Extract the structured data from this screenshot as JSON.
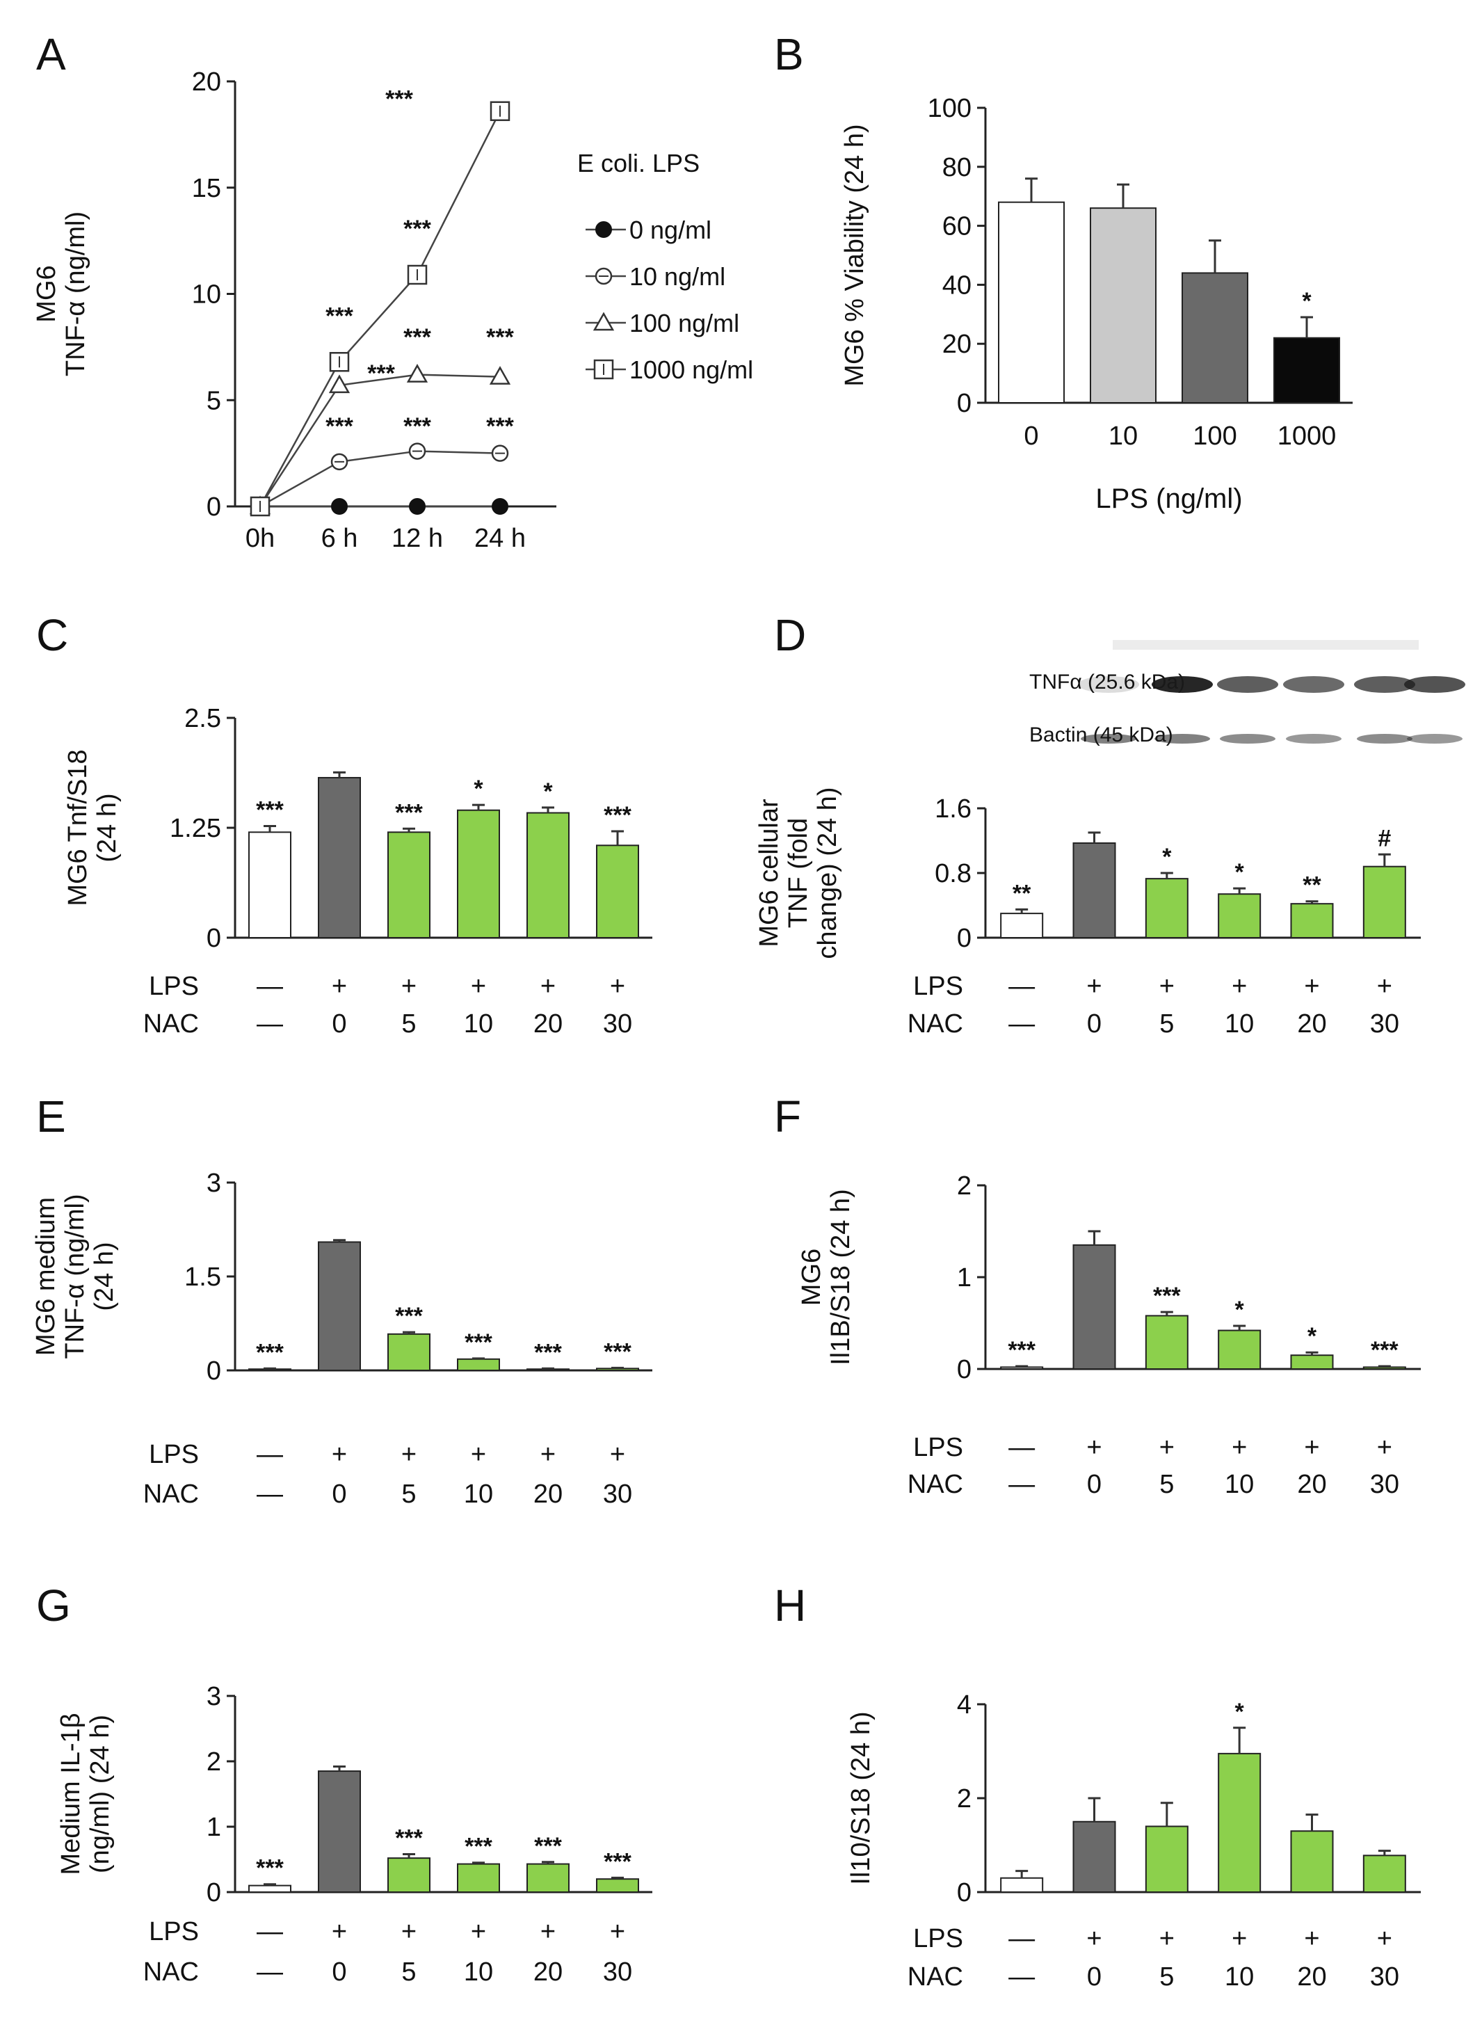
{
  "colors": {
    "white": "#ffffff",
    "light_gray": "#c9c9c9",
    "dark_gray": "#6a6a6a",
    "black": "#0a0a0a",
    "green": "#8cd04c",
    "axis": "#222222"
  },
  "chart_data": [
    {
      "id": "A",
      "letter": "A",
      "type": "line",
      "ylabel_lines": [
        "MG6",
        "TNF-α (ng/ml)"
      ],
      "categories": [
        "0h",
        "6 h",
        "12 h",
        "24 h"
      ],
      "ylim": [
        0,
        20
      ],
      "yticks": [
        0,
        5,
        10,
        15,
        20
      ],
      "legend_title": "E coli. LPS",
      "series": [
        {
          "name": "0 ng/ml",
          "marker": "filled-circle",
          "values": [
            0,
            0,
            0,
            0
          ],
          "errors": [
            0,
            0,
            0,
            0
          ]
        },
        {
          "name": "10 ng/ml",
          "marker": "open-circle",
          "values": [
            0,
            2.1,
            2.6,
            2.5
          ],
          "errors": [
            0,
            0.15,
            0.15,
            0.15
          ]
        },
        {
          "name": "100 ng/ml",
          "marker": "open-triangle",
          "values": [
            0,
            5.7,
            6.2,
            6.1
          ],
          "errors": [
            0,
            0.3,
            0.3,
            0.2
          ]
        },
        {
          "name": "1000 ng/ml",
          "marker": "open-square",
          "values": [
            0,
            6.8,
            10.9,
            18.6
          ],
          "errors": [
            0,
            0.4,
            0.3,
            0.3
          ]
        }
      ],
      "annotations": [
        {
          "text": "***",
          "x": "6 h",
          "y": 8.6
        },
        {
          "text": "***",
          "x": "6 h",
          "y": 5.9,
          "offset": "right"
        },
        {
          "text": "***",
          "x": "6 h",
          "y": 3.4
        },
        {
          "text": "***",
          "x": "12 h",
          "y": 12.7
        },
        {
          "text": "***",
          "x": "12 h",
          "y": 7.6
        },
        {
          "text": "***",
          "x": "12 h",
          "y": 3.4
        },
        {
          "text": "***",
          "x": "24 h",
          "y": 7.6
        },
        {
          "text": "***",
          "x": "24 h",
          "y": 3.4
        },
        {
          "text": "***",
          "x": "24 h",
          "y": 18.8,
          "offset": "left"
        }
      ]
    },
    {
      "id": "B",
      "letter": "B",
      "type": "bar",
      "ylabel_lines": [
        "MG6 % Viability (24 h)"
      ],
      "xlabel": "LPS (ng/ml)",
      "categories": [
        "0",
        "10",
        "100",
        "1000"
      ],
      "colors": [
        "white",
        "light_gray",
        "dark_gray",
        "black"
      ],
      "values": [
        68,
        66,
        44,
        22
      ],
      "errors": [
        8,
        8,
        11,
        7
      ],
      "stars": [
        "",
        "",
        "",
        "*"
      ],
      "ylim": [
        0,
        100
      ],
      "yticks": [
        0,
        20,
        40,
        60,
        80,
        100
      ]
    },
    {
      "id": "C",
      "letter": "C",
      "type": "bar",
      "ylabel_lines": [
        "MG6 Tnf/S18",
        "(24 h)"
      ],
      "categories": [
        "—",
        "0",
        "5",
        "10",
        "20",
        "30"
      ],
      "lps": [
        "—",
        "+",
        "+",
        "+",
        "+",
        "+"
      ],
      "row_labels": [
        "LPS",
        "NAC"
      ],
      "colors": [
        "white",
        "dark_gray",
        "green",
        "green",
        "green",
        "green"
      ],
      "values": [
        1.2,
        1.82,
        1.2,
        1.45,
        1.42,
        1.05
      ],
      "errors": [
        0.07,
        0.06,
        0.04,
        0.06,
        0.06,
        0.16
      ],
      "stars": [
        "***",
        "",
        "***",
        "*",
        "*",
        "***"
      ],
      "ylim": [
        0,
        2.5
      ],
      "yticks": [
        0,
        1.25,
        2.5
      ],
      "ytick_labels": [
        "0",
        "1.25",
        "2.5"
      ]
    },
    {
      "id": "D",
      "letter": "D",
      "type": "bar",
      "ylabel_lines": [
        "MG6 cellular",
        "TNF (fold",
        "change) (24 h)"
      ],
      "blot_labels": [
        "TNFα (25.6 kDa)",
        "Bactin (45 kDa)"
      ],
      "categories": [
        "—",
        "0",
        "5",
        "10",
        "20",
        "30"
      ],
      "lps": [
        "—",
        "+",
        "+",
        "+",
        "+",
        "+"
      ],
      "row_labels": [
        "LPS",
        "NAC"
      ],
      "colors": [
        "white",
        "dark_gray",
        "green",
        "green",
        "green",
        "green"
      ],
      "values": [
        0.3,
        1.17,
        0.73,
        0.54,
        0.42,
        0.88
      ],
      "errors": [
        0.05,
        0.13,
        0.07,
        0.07,
        0.03,
        0.15
      ],
      "stars": [
        "**",
        "",
        "*",
        "*",
        "**",
        "#"
      ],
      "ylim": [
        0,
        1.6
      ],
      "yticks": [
        0,
        0.8,
        1.6
      ],
      "ytick_labels": [
        "0",
        "0.8",
        "1.6"
      ]
    },
    {
      "id": "E",
      "letter": "E",
      "type": "bar",
      "ylabel_lines": [
        "MG6 medium",
        "TNF-α (ng/ml)",
        "(24 h)"
      ],
      "categories": [
        "—",
        "0",
        "5",
        "10",
        "20",
        "30"
      ],
      "lps": [
        "—",
        "+",
        "+",
        "+",
        "+",
        "+"
      ],
      "row_labels": [
        "LPS",
        "NAC"
      ],
      "colors": [
        "white",
        "dark_gray",
        "green",
        "green",
        "green",
        "green"
      ],
      "values": [
        0.02,
        2.05,
        0.58,
        0.18,
        0.02,
        0.03
      ],
      "errors": [
        0.01,
        0.03,
        0.03,
        0.01,
        0.01,
        0.01
      ],
      "stars": [
        "***",
        "",
        "***",
        "***",
        "***",
        "***"
      ],
      "ylim": [
        0,
        3
      ],
      "yticks": [
        0,
        1.5,
        3
      ],
      "ytick_labels": [
        "0",
        "1.5",
        "3"
      ]
    },
    {
      "id": "F",
      "letter": "F",
      "type": "bar",
      "ylabel_lines": [
        "MG6",
        "Il1B/S18 (24 h)"
      ],
      "categories": [
        "—",
        "0",
        "5",
        "10",
        "20",
        "30"
      ],
      "lps": [
        "—",
        "+",
        "+",
        "+",
        "+",
        "+"
      ],
      "row_labels": [
        "LPS",
        "NAC"
      ],
      "colors": [
        "white",
        "dark_gray",
        "green",
        "green",
        "green",
        "green"
      ],
      "values": [
        0.02,
        1.35,
        0.58,
        0.42,
        0.15,
        0.02
      ],
      "errors": [
        0.01,
        0.15,
        0.04,
        0.05,
        0.03,
        0.01
      ],
      "stars": [
        "***",
        "",
        "***",
        "*",
        "*",
        "***"
      ],
      "ylim": [
        0,
        2
      ],
      "yticks": [
        0,
        1,
        2
      ],
      "ytick_labels": [
        "0",
        "1",
        "2"
      ]
    },
    {
      "id": "G",
      "letter": "G",
      "type": "bar",
      "ylabel_lines": [
        "Medium IL-1β",
        "(ng/ml) (24 h)"
      ],
      "categories": [
        "—",
        "0",
        "5",
        "10",
        "20",
        "30"
      ],
      "lps": [
        "—",
        "+",
        "+",
        "+",
        "+",
        "+"
      ],
      "row_labels": [
        "LPS",
        "NAC"
      ],
      "colors": [
        "white",
        "dark_gray",
        "green",
        "green",
        "green",
        "green"
      ],
      "values": [
        0.1,
        1.85,
        0.52,
        0.43,
        0.43,
        0.2
      ],
      "errors": [
        0.02,
        0.07,
        0.06,
        0.02,
        0.03,
        0.02
      ],
      "stars": [
        "***",
        "",
        "***",
        "***",
        "***",
        "***"
      ],
      "ylim": [
        0,
        3
      ],
      "yticks": [
        0,
        1,
        2,
        3
      ],
      "ytick_labels": [
        "0",
        "1",
        "2",
        "3"
      ]
    },
    {
      "id": "H",
      "letter": "H",
      "type": "bar",
      "ylabel_lines": [
        "Il10/S18 (24 h)"
      ],
      "categories": [
        "—",
        "0",
        "5",
        "10",
        "20",
        "30"
      ],
      "lps": [
        "—",
        "+",
        "+",
        "+",
        "+",
        "+"
      ],
      "row_labels": [
        "LPS",
        "NAC"
      ],
      "colors": [
        "white",
        "dark_gray",
        "green",
        "green",
        "green",
        "green"
      ],
      "values": [
        0.3,
        1.5,
        1.4,
        2.95,
        1.3,
        0.78
      ],
      "errors": [
        0.15,
        0.5,
        0.5,
        0.55,
        0.35,
        0.1
      ],
      "stars": [
        "",
        "",
        "",
        "*",
        "",
        ""
      ],
      "ylim": [
        0,
        4
      ],
      "yticks": [
        0,
        2,
        4
      ],
      "ytick_labels": [
        "0",
        "2",
        "4"
      ]
    }
  ]
}
